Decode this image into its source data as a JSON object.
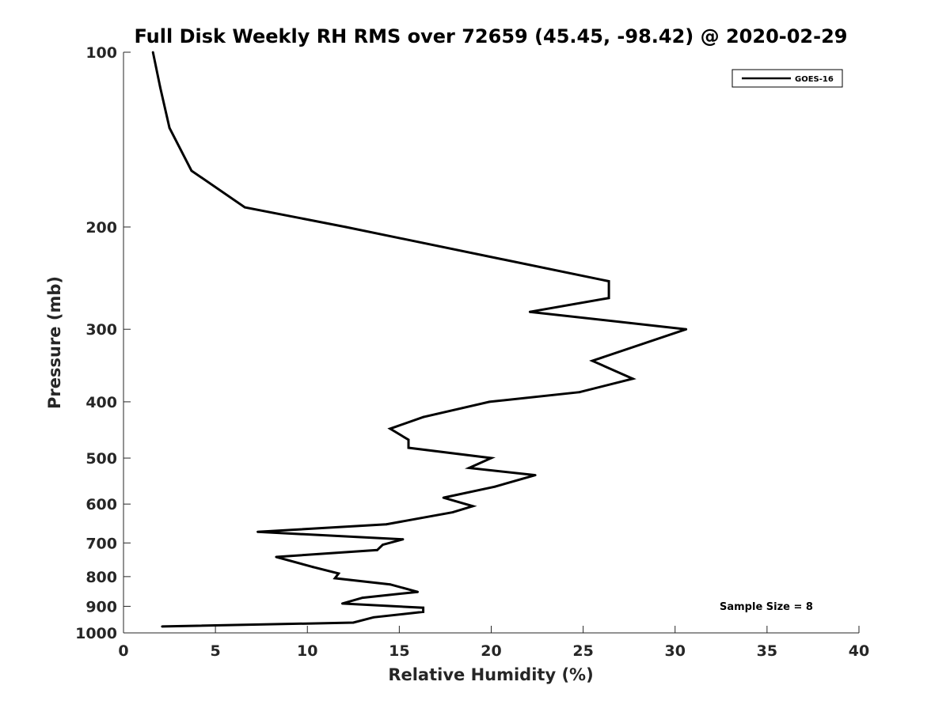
{
  "chart_data": {
    "type": "line",
    "title": "Full Disk Weekly RH RMS over 72659 (45.45, -98.42) @ 2020-02-29",
    "xlabel": "Relative Humidity (%)",
    "ylabel": "Pressure (mb)",
    "xlim": [
      0,
      40
    ],
    "ylim": [
      100,
      1000
    ],
    "y_scale": "log",
    "y_reversed": true,
    "x_ticks": [
      "0",
      "5",
      "10",
      "15",
      "20",
      "25",
      "30",
      "35",
      "40"
    ],
    "y_ticks": [
      "100",
      "200",
      "300",
      "400",
      "500",
      "600",
      "700",
      "800",
      "900",
      "1000"
    ],
    "grid": false,
    "legend_position": "top-right",
    "annotation": "Sample Size = 8",
    "series": [
      {
        "name": "GOES-16",
        "color": "#000000",
        "x": [
          1.6,
          2.0,
          2.5,
          3.7,
          6.6,
          12.1,
          26.4,
          26.4,
          22.1,
          30.6,
          25.5,
          27.7,
          24.8,
          19.9,
          16.3,
          14.5,
          15.5,
          15.5,
          20.0,
          18.8,
          22.4,
          20.2,
          17.4,
          19.0,
          17.9,
          14.3,
          7.3,
          15.2,
          14.1,
          13.8,
          8.3,
          10.3,
          11.7,
          11.5,
          14.5,
          16.0,
          13.0,
          11.9,
          16.3,
          16.3,
          13.6,
          12.5,
          2.1
        ],
        "y": [
          100,
          115,
          135,
          160,
          185,
          200,
          248,
          265,
          280,
          300,
          340,
          365,
          385,
          400,
          425,
          445,
          465,
          480,
          500,
          520,
          535,
          560,
          585,
          605,
          620,
          650,
          670,
          690,
          705,
          720,
          740,
          770,
          790,
          805,
          825,
          850,
          870,
          890,
          905,
          920,
          940,
          960,
          975
        ]
      }
    ]
  }
}
